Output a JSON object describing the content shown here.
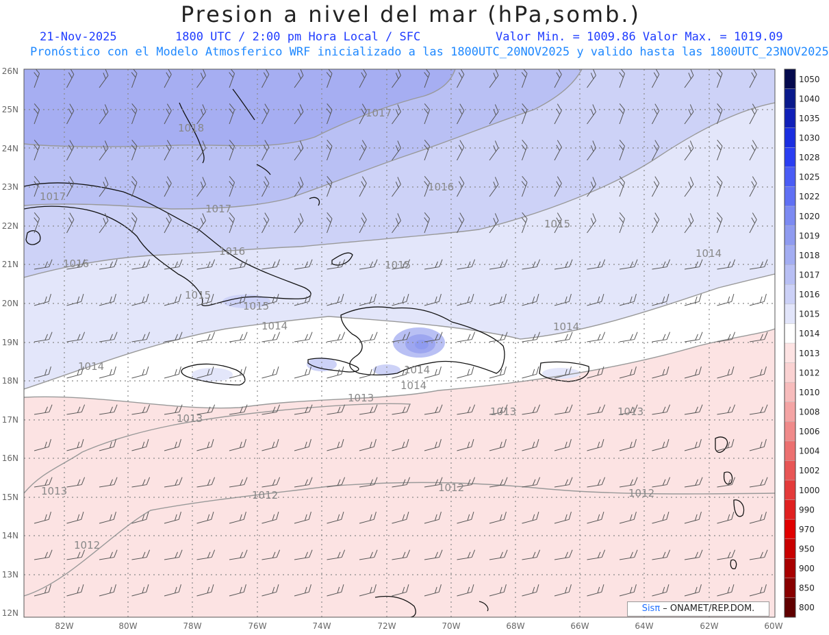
{
  "header": {
    "title": "Presion a nivel del mar (hPa,somb.)",
    "date": "21-Nov-2025",
    "time": "1800 UTC / 2:00 pm Hora Local / SFC",
    "min_max": "Valor Min. = 1009.86  Valor Max. = 1019.09",
    "model_line": "Pronóstico con el Modelo Atmosferico WRF inicializado a las 1800UTC_20NOV2025 y valido hasta las  1800UTC_23NOV2025"
  },
  "axes": {
    "lat_labels": [
      "26N",
      "25N",
      "24N",
      "23N",
      "22N",
      "21N",
      "20N",
      "19N",
      "18N",
      "17N",
      "16N",
      "15N",
      "14N",
      "13N",
      "12N"
    ],
    "lon_labels": [
      "82W",
      "80W",
      "78W",
      "76W",
      "74W",
      "72W",
      "70W",
      "68W",
      "66W",
      "64W",
      "62W",
      "60W"
    ]
  },
  "contour_labels": [
    "1017",
    "1018",
    "1017",
    "1017",
    "1016",
    "1016",
    "1016",
    "1015",
    "1015",
    "1015",
    "1015",
    "1014",
    "1014",
    "1014",
    "1014",
    "1014",
    "1014",
    "1013",
    "1013",
    "1013",
    "1013",
    "1013",
    "1012",
    "1012",
    "1012",
    "1012"
  ],
  "legend": {
    "levels": [
      "1050",
      "1040",
      "1035",
      "1030",
      "1028",
      "1025",
      "1022",
      "1020",
      "1019",
      "1018",
      "1017",
      "1016",
      "1015",
      "1014",
      "1013",
      "1012",
      "1010",
      "1008",
      "1006",
      "1004",
      "1002",
      "1000",
      "990",
      "970",
      "950",
      "900",
      "850",
      "800"
    ],
    "colors": [
      "#050a4e",
      "#0a1a8c",
      "#1020b8",
      "#1a2ee0",
      "#2a3ef2",
      "#4a5cf5",
      "#6070f4",
      "#7c8af2",
      "#8f9bf0",
      "#a3adf2",
      "#b8bff4",
      "#ccd1f7",
      "#e2e5fa",
      "#ffffff",
      "#fde3e3",
      "#fad2d2",
      "#f7bcbc",
      "#f4a4a4",
      "#f08a8a",
      "#ec7070",
      "#e85555",
      "#e43a3a",
      "#e02020",
      "#e00000",
      "#c80000",
      "#a80000",
      "#880000",
      "#600000"
    ]
  },
  "credit": {
    "sis": "Sisπ",
    "org": " – ONAMET/REP.DOM."
  }
}
